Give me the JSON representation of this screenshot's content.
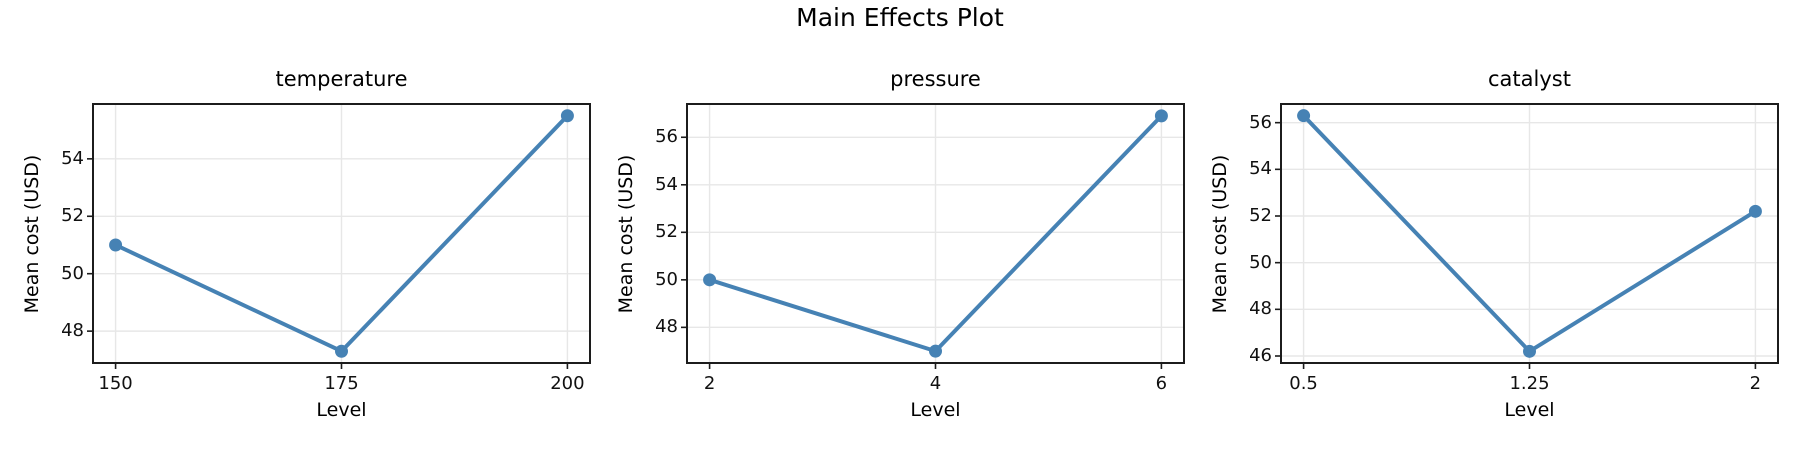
{
  "chart_data": {
    "type": "line",
    "suptitle": "Main Effects Plot",
    "line_color": "#4682B4",
    "marker": "o",
    "grid": true,
    "legend": "none",
    "subplots": [
      {
        "title": "temperature",
        "xlabel": "Level",
        "ylabel": "Mean cost (USD)",
        "x": [
          150,
          175,
          200
        ],
        "y": [
          51.0,
          47.3,
          55.5
        ],
        "xticks": [
          150,
          175,
          200
        ],
        "xtick_labels": [
          "150",
          "175",
          "200"
        ],
        "yticks": [
          48,
          50,
          52,
          54
        ],
        "xlim": [
          147.5,
          202.5
        ],
        "ylim": [
          46.89,
          55.91
        ]
      },
      {
        "title": "pressure",
        "xlabel": "Level",
        "ylabel": "Mean cost (USD)",
        "x": [
          2,
          4,
          6
        ],
        "y": [
          50.0,
          47.0,
          56.9
        ],
        "xticks": [
          2,
          4,
          6
        ],
        "xtick_labels": [
          "2",
          "4",
          "6"
        ],
        "yticks": [
          48,
          50,
          52,
          54,
          56
        ],
        "xlim": [
          1.8,
          6.2
        ],
        "ylim": [
          46.5,
          57.4
        ]
      },
      {
        "title": "catalyst",
        "xlabel": "Level",
        "ylabel": "Mean cost (USD)",
        "x": [
          0.5,
          1.25,
          2
        ],
        "y": [
          56.3,
          46.2,
          52.2
        ],
        "xticks": [
          0.5,
          1.25,
          2
        ],
        "xtick_labels": [
          "0.5",
          "1.25",
          "2"
        ],
        "yticks": [
          46,
          48,
          50,
          52,
          54,
          56
        ],
        "xlim": [
          0.425,
          2.075
        ],
        "ylim": [
          45.7,
          56.8
        ]
      }
    ]
  }
}
